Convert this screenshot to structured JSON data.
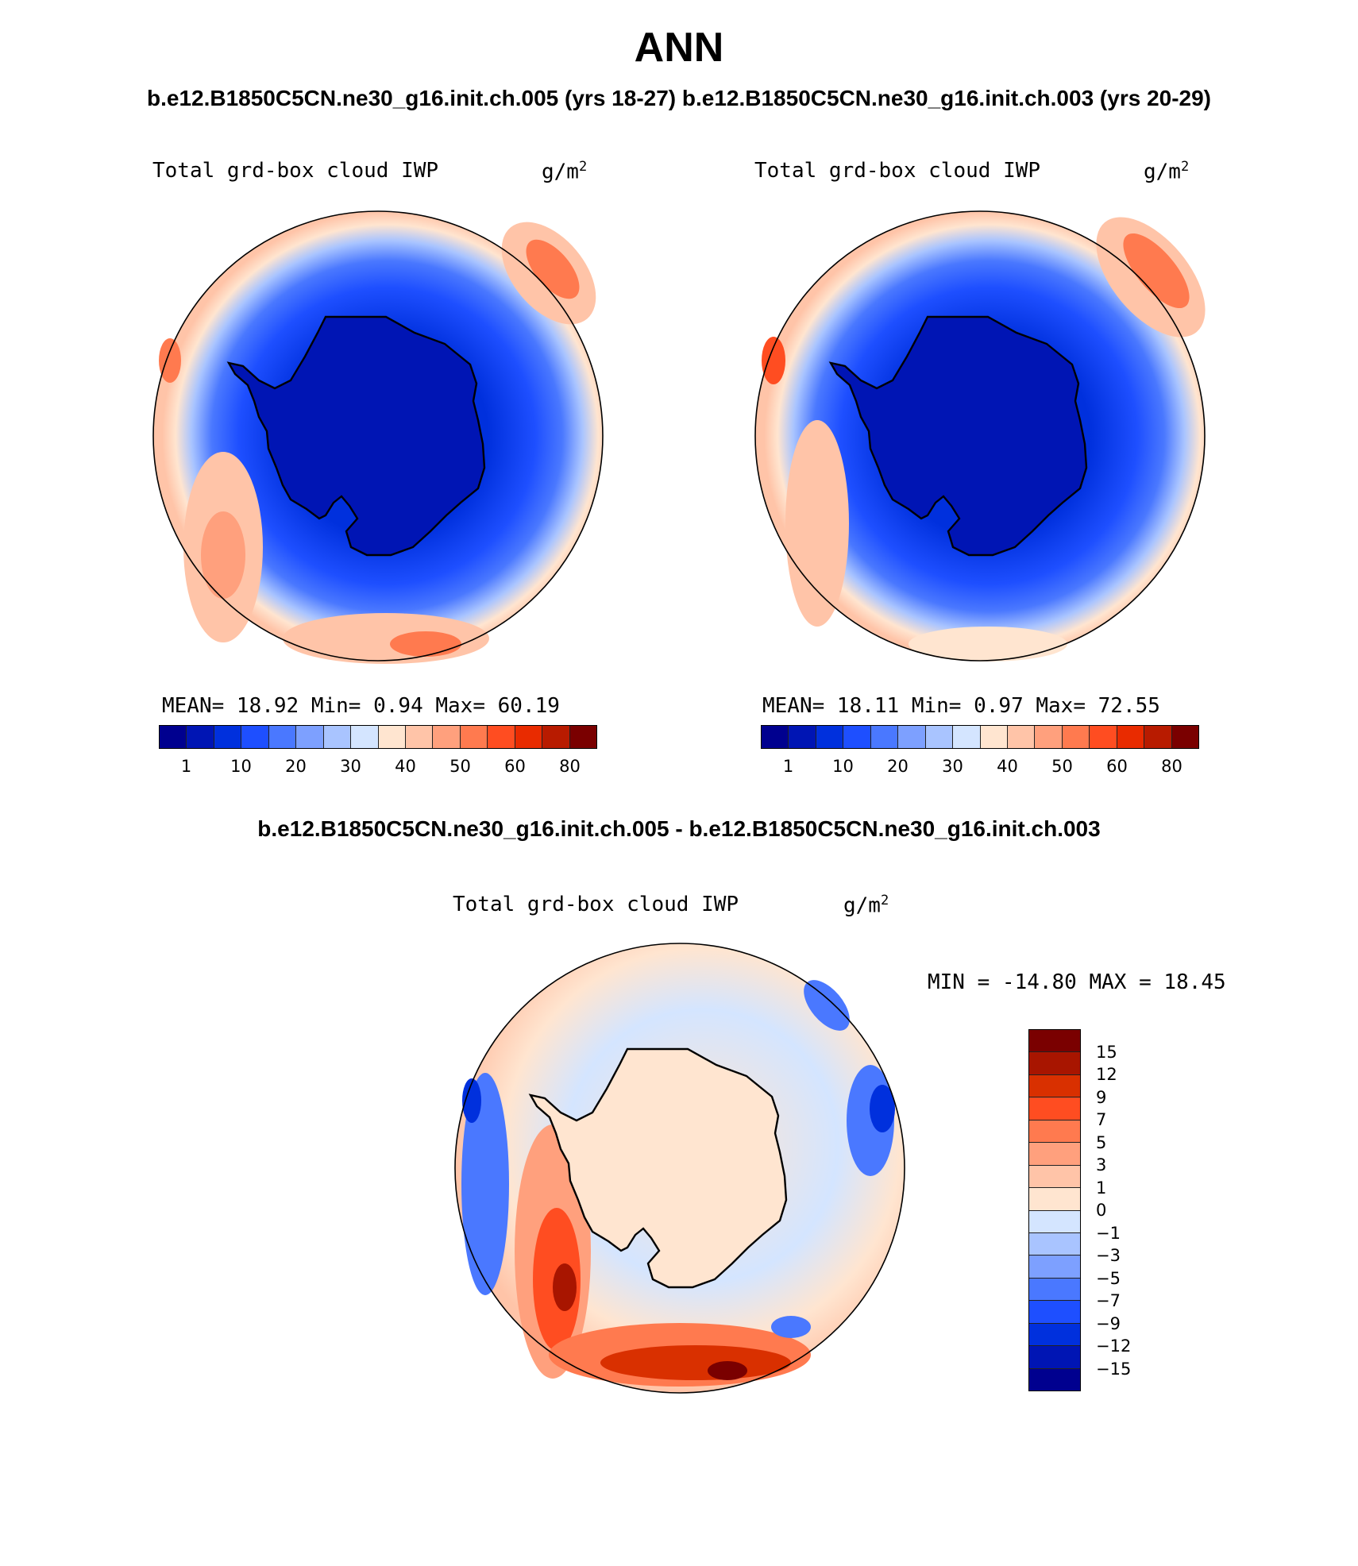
{
  "figure": {
    "season": "ANN",
    "header": "b.e12.B1850C5CN.ne30_g16.init.ch.005 (yrs 18-27) b.e12.B1850C5CN.ne30_g16.init.ch.003 (yrs 20-29)",
    "diff_title": "b.e12.B1850C5CN.ne30_g16.init.ch.005 - b.e12.B1850C5CN.ne30_g16.init.ch.003"
  },
  "variable": {
    "name": "Total grd-box cloud IWP",
    "units_base": "g/m",
    "units_exp": "2"
  },
  "panels": [
    {
      "stats": "MEAN=  18.92  Min=   0.94  Max=  60.19"
    },
    {
      "stats": "MEAN=  18.11  Min=   0.97  Max=  72.55"
    }
  ],
  "diff_panel": {
    "stats": "MIN = -14.80 MAX =  18.45"
  },
  "colorbar_levels": [
    "1",
    "10",
    "20",
    "30",
    "40",
    "50",
    "60",
    "80"
  ],
  "diff_levels": [
    "15",
    "12",
    "9",
    "7",
    "5",
    "3",
    "1",
    "0",
    "−1",
    "−3",
    "−5",
    "−7",
    "−9",
    "−12",
    "−15"
  ],
  "palette_abs": [
    "#00008f",
    "#0015b4",
    "#0030dd",
    "#1e4fff",
    "#4a78ff",
    "#7da0ff",
    "#a9c4ff",
    "#d4e5ff",
    "#ffe5d0",
    "#ffc4a8",
    "#ffa07d",
    "#ff7a4f",
    "#ff4d21",
    "#e92b00",
    "#b81b00",
    "#7a0000"
  ],
  "palette_diff": [
    "#7a0000",
    "#a81500",
    "#d93000",
    "#ff4d21",
    "#ff7a4f",
    "#ffa07d",
    "#ffc4a8",
    "#ffe5d0",
    "#d4e5ff",
    "#a9c4ff",
    "#7da0ff",
    "#4a78ff",
    "#1e4fff",
    "#0030dd",
    "#0015b4",
    "#00008f"
  ]
}
